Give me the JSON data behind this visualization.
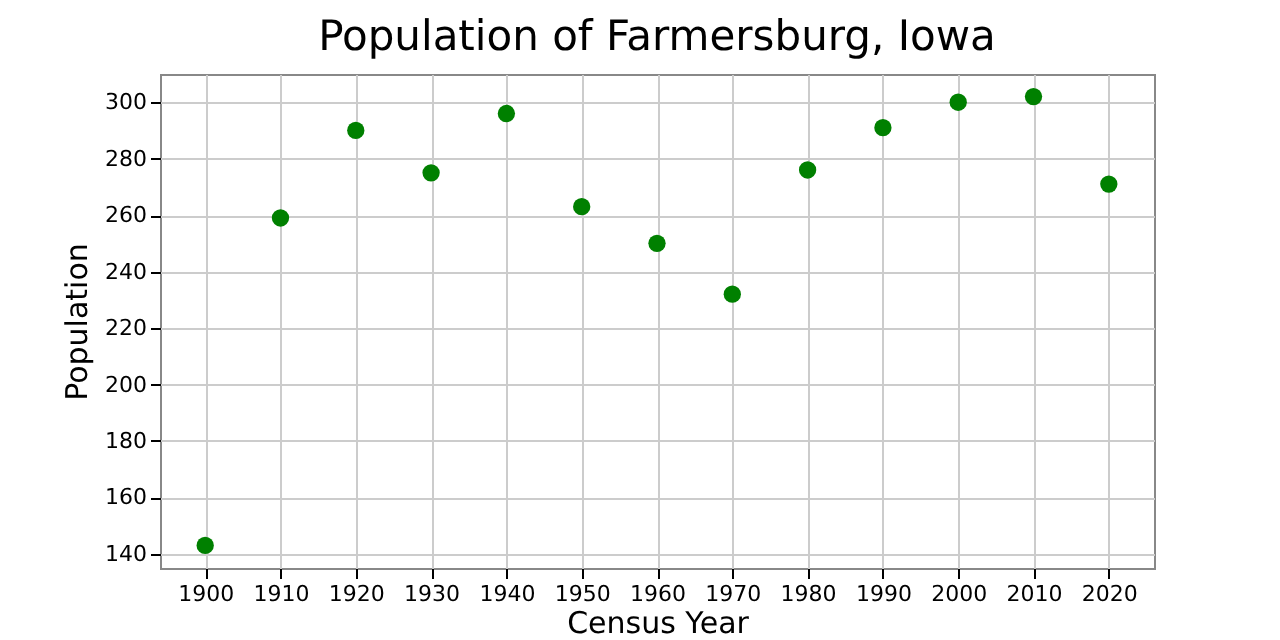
{
  "chart_data": {
    "type": "scatter",
    "title": "Population of Farmersburg, Iowa",
    "xlabel": "Census Year",
    "ylabel": "Population",
    "x": [
      1900,
      1910,
      1920,
      1930,
      1940,
      1950,
      1960,
      1970,
      1980,
      1990,
      2000,
      2010,
      2020
    ],
    "series": [
      {
        "color": "#008000",
        "values": [
          143,
          259,
          290,
          275,
          296,
          263,
          250,
          232,
          276,
          291,
          300,
          302,
          271
        ]
      }
    ],
    "xlim": [
      1894,
      2026
    ],
    "xticks": [
      1900,
      1910,
      1920,
      1930,
      1940,
      1950,
      1960,
      1970,
      1980,
      1990,
      2000,
      2010,
      2020
    ],
    "ylim": [
      135,
      310
    ],
    "yticks": [
      140,
      160,
      180,
      200,
      220,
      240,
      260,
      280,
      300
    ],
    "grid": true,
    "marker": "circle"
  }
}
